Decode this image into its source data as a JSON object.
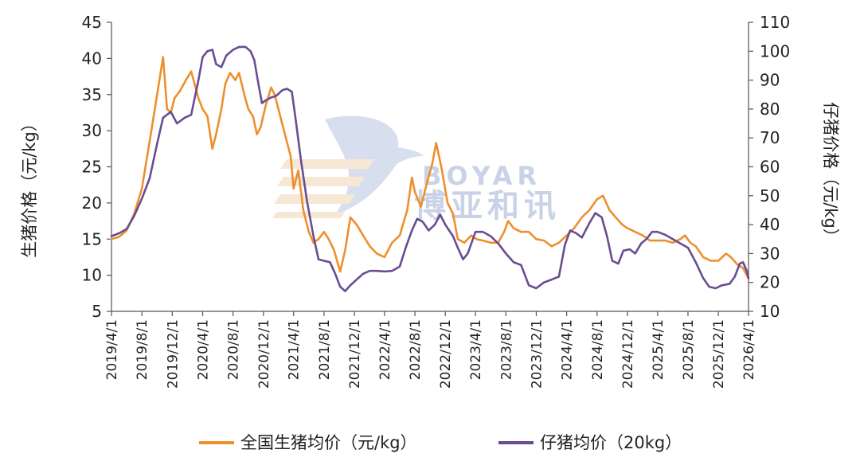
{
  "colors": {
    "national_price": "#ee8f2e",
    "piglet_price": "#6a4c93",
    "watermark": "#c9d2e6",
    "axis": "#444444"
  },
  "watermark": {
    "english": "BOYAR",
    "chinese": "博亚和讯"
  },
  "chart_data": {
    "type": "line",
    "title": "",
    "ylabel_left": "生猪价格（元/kg）",
    "ylabel_right": "仔猪价格（元/kg）",
    "ylim_left": [
      5,
      45
    ],
    "ylim_right": [
      10,
      110
    ],
    "yticks_left": [
      "45",
      "40",
      "35",
      "30",
      "25",
      "20",
      "15",
      "10",
      "5"
    ],
    "yticks_right": [
      "110",
      "100",
      "90",
      "80",
      "70",
      "60",
      "50",
      "40",
      "30",
      "20",
      "10"
    ],
    "x_tick_labels": [
      "2019/4/1",
      "2019/8/1",
      "2019/12/1",
      "2020/4/1",
      "2020/8/1",
      "2020/12/1",
      "2021/4/1",
      "2021/8/1",
      "2021/12/1",
      "2022/4/1",
      "2022/8/1",
      "2022/12/1",
      "2023/4/1",
      "2023/8/1",
      "2023/12/1",
      "2024/4/1",
      "2024/8/1",
      "2024/12/1",
      "2025/4/1",
      "2025/8/1",
      "2025/12/1",
      "2026/4/1"
    ],
    "x_range": [
      "2019-04-01",
      "2026-04-01"
    ],
    "legend_position": "bottom",
    "series": [
      {
        "name": "全国生猪均价（元/kg）",
        "axis": "left",
        "points": [
          [
            "2019-04-01",
            15.0
          ],
          [
            "2019-05-01",
            15.3
          ],
          [
            "2019-06-01",
            16.2
          ],
          [
            "2019-07-01",
            18.5
          ],
          [
            "2019-08-01",
            22.0
          ],
          [
            "2019-09-01",
            28.5
          ],
          [
            "2019-10-01",
            35.0
          ],
          [
            "2019-10-25",
            40.2
          ],
          [
            "2019-11-10",
            33.0
          ],
          [
            "2019-11-25",
            32.5
          ],
          [
            "2019-12-10",
            34.5
          ],
          [
            "2020-01-01",
            35.5
          ],
          [
            "2020-01-25",
            37.0
          ],
          [
            "2020-02-15",
            38.2
          ],
          [
            "2020-03-15",
            34.5
          ],
          [
            "2020-04-01",
            33.0
          ],
          [
            "2020-04-20",
            32.0
          ],
          [
            "2020-05-10",
            27.5
          ],
          [
            "2020-05-25",
            29.5
          ],
          [
            "2020-06-15",
            33.0
          ],
          [
            "2020-07-01",
            36.5
          ],
          [
            "2020-07-20",
            38.0
          ],
          [
            "2020-08-10",
            37.0
          ],
          [
            "2020-08-25",
            38.0
          ],
          [
            "2020-09-15",
            35.0
          ],
          [
            "2020-10-01",
            33.0
          ],
          [
            "2020-10-20",
            32.0
          ],
          [
            "2020-11-05",
            29.5
          ],
          [
            "2020-11-20",
            30.5
          ],
          [
            "2020-12-10",
            33.5
          ],
          [
            "2021-01-01",
            36.0
          ],
          [
            "2021-01-15",
            35.0
          ],
          [
            "2021-02-10",
            31.5
          ],
          [
            "2021-03-01",
            29.0
          ],
          [
            "2021-03-20",
            26.5
          ],
          [
            "2021-04-01",
            22.0
          ],
          [
            "2021-04-20",
            24.5
          ],
          [
            "2021-05-10",
            19.0
          ],
          [
            "2021-06-01",
            16.0
          ],
          [
            "2021-06-20",
            14.5
          ],
          [
            "2021-07-10",
            15.0
          ],
          [
            "2021-08-01",
            16.0
          ],
          [
            "2021-08-20",
            15.0
          ],
          [
            "2021-09-10",
            13.5
          ],
          [
            "2021-10-05",
            10.5
          ],
          [
            "2021-10-25",
            13.5
          ],
          [
            "2021-11-15",
            18.0
          ],
          [
            "2021-12-10",
            17.0
          ],
          [
            "2022-01-05",
            15.5
          ],
          [
            "2022-02-01",
            14.0
          ],
          [
            "2022-03-01",
            13.0
          ],
          [
            "2022-04-01",
            12.5
          ],
          [
            "2022-05-01",
            14.5
          ],
          [
            "2022-06-01",
            15.5
          ],
          [
            "2022-07-01",
            19.0
          ],
          [
            "2022-07-20",
            23.5
          ],
          [
            "2022-08-01",
            21.5
          ],
          [
            "2022-08-25",
            19.5
          ],
          [
            "2022-09-20",
            23.0
          ],
          [
            "2022-10-10",
            25.5
          ],
          [
            "2022-10-25",
            28.3
          ],
          [
            "2022-11-15",
            25.0
          ],
          [
            "2022-12-10",
            20.0
          ],
          [
            "2023-01-01",
            18.5
          ],
          [
            "2023-01-20",
            15.0
          ],
          [
            "2023-02-15",
            14.5
          ],
          [
            "2023-03-15",
            15.5
          ],
          [
            "2023-04-05",
            15.0
          ],
          [
            "2023-05-01",
            14.8
          ],
          [
            "2023-06-01",
            14.5
          ],
          [
            "2023-07-01",
            14.5
          ],
          [
            "2023-07-25",
            16.0
          ],
          [
            "2023-08-10",
            17.5
          ],
          [
            "2023-09-01",
            16.5
          ],
          [
            "2023-10-01",
            16.0
          ],
          [
            "2023-11-01",
            16.0
          ],
          [
            "2023-12-01",
            15.0
          ],
          [
            "2024-01-01",
            14.8
          ],
          [
            "2024-02-01",
            14.0
          ],
          [
            "2024-03-01",
            14.5
          ],
          [
            "2024-04-01",
            15.5
          ],
          [
            "2024-05-01",
            16.5
          ],
          [
            "2024-06-01",
            18.0
          ],
          [
            "2024-07-01",
            19.0
          ],
          [
            "2024-08-01",
            20.5
          ],
          [
            "2024-08-25",
            21.0
          ],
          [
            "2024-09-20",
            19.0
          ],
          [
            "2024-10-15",
            18.0
          ],
          [
            "2024-11-10",
            17.0
          ],
          [
            "2024-12-01",
            16.5
          ],
          [
            "2025-01-01",
            16.0
          ],
          [
            "2025-02-01",
            15.5
          ],
          [
            "2025-03-01",
            14.8
          ],
          [
            "2025-04-01",
            14.8
          ],
          [
            "2025-05-01",
            14.8
          ],
          [
            "2025-06-01",
            14.5
          ],
          [
            "2025-07-01",
            15.0
          ],
          [
            "2025-07-20",
            15.5
          ],
          [
            "2025-08-10",
            14.5
          ],
          [
            "2025-09-01",
            14.0
          ],
          [
            "2025-10-01",
            12.5
          ],
          [
            "2025-11-01",
            12.0
          ],
          [
            "2025-12-01",
            12.0
          ],
          [
            "2026-01-01",
            13.0
          ],
          [
            "2026-01-20",
            12.5
          ],
          [
            "2026-02-15",
            11.5
          ],
          [
            "2026-03-10",
            11.0
          ],
          [
            "2026-03-25",
            10.0
          ],
          [
            "2026-04-01",
            9.5
          ]
        ]
      },
      {
        "name": "仔猪均价（20kg）",
        "axis": "right",
        "points": [
          [
            "2019-04-01",
            36.0
          ],
          [
            "2019-05-01",
            37.0
          ],
          [
            "2019-06-01",
            38.5
          ],
          [
            "2019-07-01",
            43.0
          ],
          [
            "2019-08-01",
            49.0
          ],
          [
            "2019-09-01",
            56.0
          ],
          [
            "2019-10-01",
            68.0
          ],
          [
            "2019-10-25",
            77.0
          ],
          [
            "2019-11-25",
            79.0
          ],
          [
            "2019-12-20",
            75.0
          ],
          [
            "2020-01-20",
            77.0
          ],
          [
            "2020-02-15",
            78.0
          ],
          [
            "2020-03-15",
            90.0
          ],
          [
            "2020-04-01",
            98.0
          ],
          [
            "2020-04-20",
            100.0
          ],
          [
            "2020-05-10",
            100.5
          ],
          [
            "2020-05-25",
            95.5
          ],
          [
            "2020-06-15",
            94.5
          ],
          [
            "2020-07-05",
            98.5
          ],
          [
            "2020-08-01",
            100.5
          ],
          [
            "2020-08-25",
            101.5
          ],
          [
            "2020-09-20",
            101.5
          ],
          [
            "2020-10-10",
            100.0
          ],
          [
            "2020-10-25",
            97.0
          ],
          [
            "2020-11-10",
            89.0
          ],
          [
            "2020-11-25",
            82.0
          ],
          [
            "2020-12-10",
            83.0
          ],
          [
            "2021-01-01",
            84.0
          ],
          [
            "2021-01-20",
            84.5
          ],
          [
            "2021-02-15",
            86.5
          ],
          [
            "2021-03-05",
            87.0
          ],
          [
            "2021-03-25",
            86.0
          ],
          [
            "2021-04-10",
            76.0
          ],
          [
            "2021-05-01",
            62.0
          ],
          [
            "2021-05-25",
            48.0
          ],
          [
            "2021-06-20",
            36.0
          ],
          [
            "2021-07-10",
            28.0
          ],
          [
            "2021-08-01",
            27.5
          ],
          [
            "2021-08-25",
            27.0
          ],
          [
            "2021-09-15",
            23.0
          ],
          [
            "2021-10-05",
            18.5
          ],
          [
            "2021-10-25",
            17.0
          ],
          [
            "2021-11-15",
            19.0
          ],
          [
            "2021-12-10",
            21.0
          ],
          [
            "2022-01-05",
            23.0
          ],
          [
            "2022-02-01",
            24.0
          ],
          [
            "2022-03-01",
            24.0
          ],
          [
            "2022-04-01",
            23.8
          ],
          [
            "2022-05-01",
            24.0
          ],
          [
            "2022-06-01",
            25.5
          ],
          [
            "2022-06-25",
            32.0
          ],
          [
            "2022-07-20",
            38.0
          ],
          [
            "2022-08-10",
            42.0
          ],
          [
            "2022-09-01",
            41.0
          ],
          [
            "2022-09-25",
            38.0
          ],
          [
            "2022-10-20",
            40.0
          ],
          [
            "2022-11-10",
            43.5
          ],
          [
            "2022-12-01",
            40.0
          ],
          [
            "2023-01-01",
            36.0
          ],
          [
            "2023-01-20",
            32.0
          ],
          [
            "2023-02-10",
            28.0
          ],
          [
            "2023-03-01",
            30.0
          ],
          [
            "2023-04-01",
            37.5
          ],
          [
            "2023-05-01",
            37.5
          ],
          [
            "2023-06-01",
            36.0
          ],
          [
            "2023-07-01",
            33.5
          ],
          [
            "2023-08-01",
            30.0
          ],
          [
            "2023-09-01",
            27.0
          ],
          [
            "2023-10-01",
            26.0
          ],
          [
            "2023-11-01",
            19.0
          ],
          [
            "2023-12-01",
            18.0
          ],
          [
            "2024-01-01",
            20.0
          ],
          [
            "2024-02-01",
            21.0
          ],
          [
            "2024-03-01",
            22.0
          ],
          [
            "2024-03-25",
            33.0
          ],
          [
            "2024-04-15",
            38.0
          ],
          [
            "2024-05-10",
            37.0
          ],
          [
            "2024-06-01",
            35.5
          ],
          [
            "2024-07-01",
            40.5
          ],
          [
            "2024-07-25",
            44.0
          ],
          [
            "2024-08-20",
            42.5
          ],
          [
            "2024-09-10",
            36.0
          ],
          [
            "2024-10-01",
            27.5
          ],
          [
            "2024-10-25",
            26.5
          ],
          [
            "2024-11-15",
            31.0
          ],
          [
            "2024-12-10",
            31.5
          ],
          [
            "2025-01-01",
            30.0
          ],
          [
            "2025-01-25",
            33.5
          ],
          [
            "2025-02-15",
            35.0
          ],
          [
            "2025-03-10",
            37.5
          ],
          [
            "2025-04-01",
            37.5
          ],
          [
            "2025-05-01",
            36.5
          ],
          [
            "2025-06-01",
            35.0
          ],
          [
            "2025-07-01",
            33.5
          ],
          [
            "2025-08-01",
            32.0
          ],
          [
            "2025-09-01",
            27.0
          ],
          [
            "2025-10-01",
            21.5
          ],
          [
            "2025-10-25",
            18.5
          ],
          [
            "2025-11-20",
            18.0
          ],
          [
            "2025-12-15",
            19.0
          ],
          [
            "2026-01-15",
            19.5
          ],
          [
            "2026-02-05",
            22.0
          ],
          [
            "2026-02-25",
            26.5
          ],
          [
            "2026-03-10",
            27.0
          ],
          [
            "2026-03-25",
            24.0
          ],
          [
            "2026-04-01",
            21.5
          ]
        ]
      }
    ]
  }
}
